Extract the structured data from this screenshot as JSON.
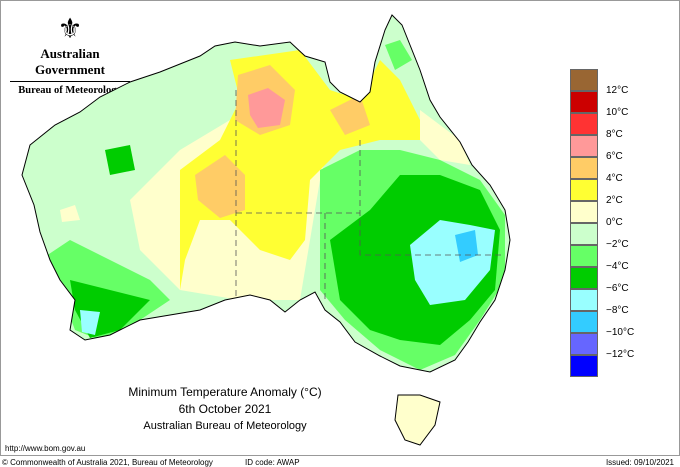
{
  "header": {
    "crest": "coat-of-arms",
    "government": "Australian Government",
    "agency": "Bureau of Meteorology"
  },
  "title": {
    "line1": "Minimum Temperature Anomaly (°C)",
    "line2": "6th October 2021",
    "line3": "Australian Bureau of Meteorology"
  },
  "legend": {
    "colors": [
      "#996633",
      "#cc0000",
      "#ff3333",
      "#ff9999",
      "#ffcc66",
      "#ffff33",
      "#ffffcc",
      "#ccffcc",
      "#66ff66",
      "#00cc00",
      "#99ffff",
      "#33ccff",
      "#6666ff",
      "#0000ff"
    ],
    "labels": [
      "12°C",
      "10°C",
      "8°C",
      "6°C",
      "4°C",
      "2°C",
      "0°C",
      "−2°C",
      "−4°C",
      "−6°C",
      "−8°C",
      "−10°C",
      "−12°C"
    ]
  },
  "footer": {
    "url": "http://www.bom.gov.au",
    "copyright": "© Commonwealth of Australia 2021, Bureau of Meteorology",
    "id_code": "ID code: AWAP",
    "issued": "Issued: 09/10/2021"
  }
}
